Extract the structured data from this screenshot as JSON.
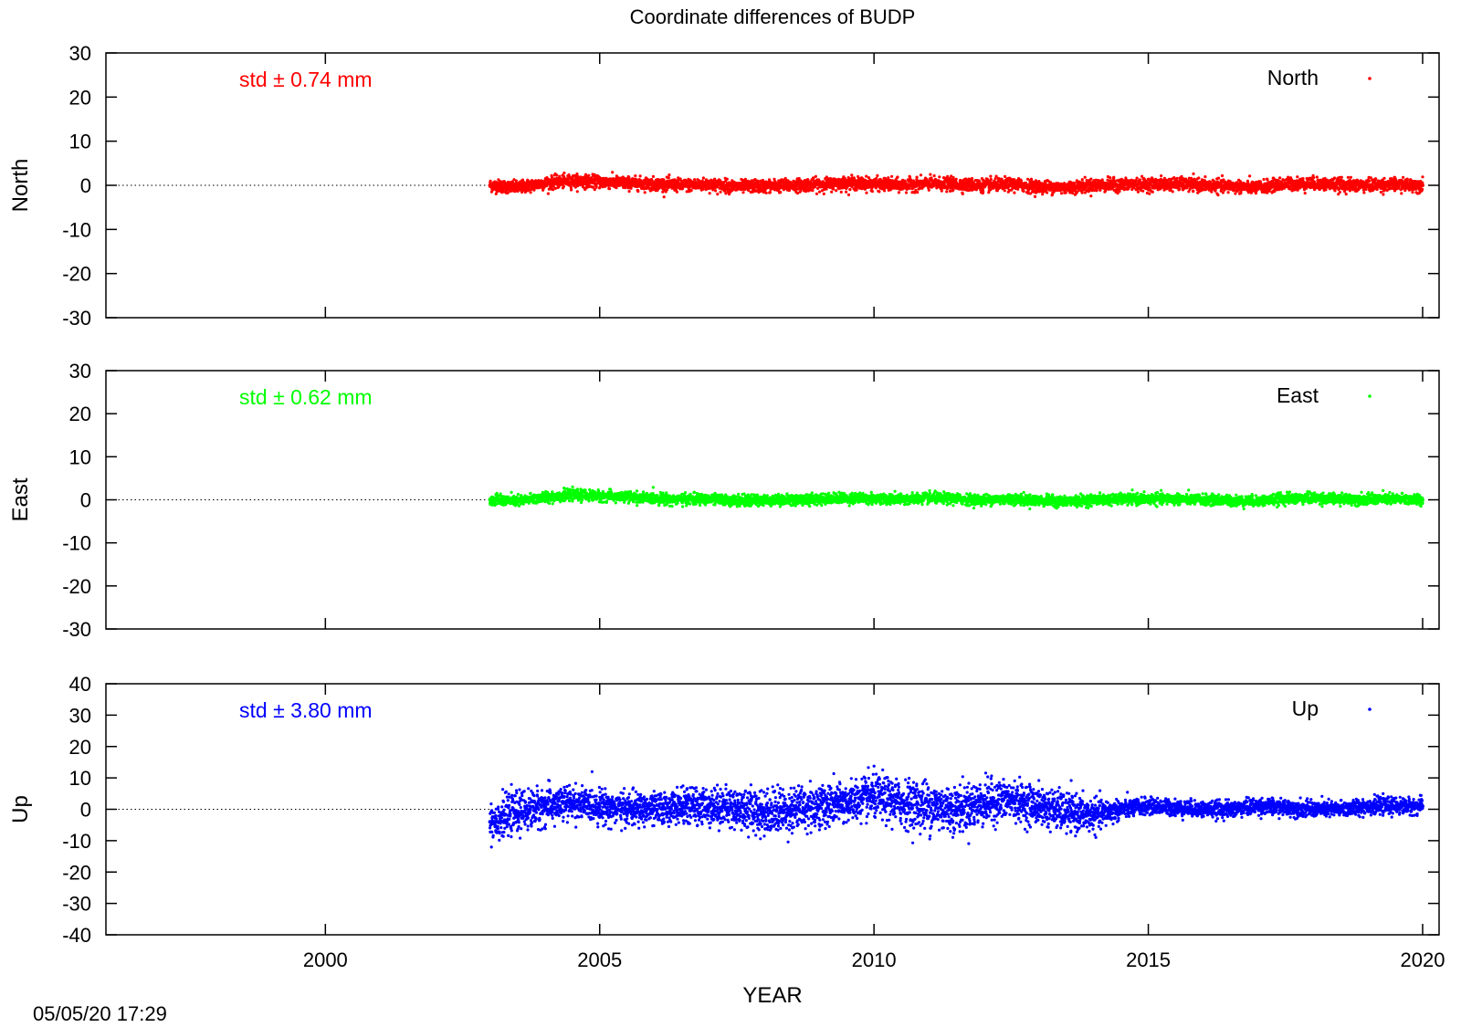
{
  "chart_data": {
    "type": "scatter",
    "title": "Coordinate differences of BUDP",
    "xlabel": "YEAR",
    "x_ticks": [
      2000,
      2005,
      2010,
      2015,
      2020
    ],
    "xlim": [
      1996,
      2020.3
    ],
    "timestamp": "05/05/20 17:29",
    "panels": [
      {
        "id": "north",
        "ylabel": "North",
        "ylim": [
          -30,
          30
        ],
        "y_ticks": [
          -30,
          -20,
          -10,
          0,
          10,
          20,
          30
        ],
        "legend": "North",
        "std_label": "std ± 0.74 mm",
        "color": "#ff0000",
        "series": {
          "x": [
            2003.0,
            2003.5,
            2004.0,
            2004.5,
            2005.0,
            2005.5,
            2006.0,
            2006.5,
            2007.0,
            2007.5,
            2008.0,
            2008.5,
            2009.0,
            2009.5,
            2010.0,
            2010.5,
            2011.0,
            2011.5,
            2012.0,
            2012.5,
            2013.0,
            2013.5,
            2014.0,
            2014.5,
            2015.0,
            2015.5,
            2016.0,
            2016.5,
            2017.0,
            2017.5,
            2018.0,
            2018.5,
            2019.0,
            2019.5,
            2020.0
          ],
          "y": [
            0.0,
            -0.5,
            0.5,
            1.0,
            0.8,
            0.5,
            0.3,
            0.0,
            0.2,
            -0.3,
            -0.2,
            0.0,
            0.2,
            0.5,
            0.3,
            0.0,
            0.4,
            0.2,
            0.0,
            0.2,
            -0.3,
            -0.5,
            0.0,
            0.1,
            0.2,
            0.3,
            0.0,
            -0.2,
            -0.5,
            0.3,
            0.4,
            0.1,
            0.0,
            0.2,
            0.0
          ],
          "spread": 1.4
        }
      },
      {
        "id": "east",
        "ylabel": "East",
        "ylim": [
          -30,
          30
        ],
        "y_ticks": [
          -30,
          -20,
          -10,
          0,
          10,
          20,
          30
        ],
        "legend": "East",
        "std_label": "std ± 0.62 mm",
        "color": "#00ff00",
        "series": {
          "x": [
            2003.0,
            2003.5,
            2004.0,
            2004.5,
            2005.0,
            2005.5,
            2006.0,
            2006.5,
            2007.0,
            2007.5,
            2008.0,
            2008.5,
            2009.0,
            2009.5,
            2010.0,
            2010.5,
            2011.0,
            2011.5,
            2012.0,
            2012.5,
            2013.0,
            2013.5,
            2014.0,
            2014.5,
            2015.0,
            2015.5,
            2016.0,
            2016.5,
            2017.0,
            2017.5,
            2018.0,
            2018.5,
            2019.0,
            2019.5,
            2020.0
          ],
          "y": [
            0.0,
            -0.3,
            0.6,
            1.1,
            0.9,
            0.6,
            0.3,
            0.1,
            0.2,
            -0.2,
            -0.1,
            0.0,
            0.2,
            0.4,
            0.3,
            0.1,
            0.4,
            0.2,
            0.0,
            0.2,
            -0.2,
            -0.4,
            0.0,
            0.1,
            0.2,
            0.2,
            0.0,
            -0.2,
            -0.3,
            0.3,
            0.4,
            0.2,
            0.1,
            0.2,
            0.0
          ],
          "spread": 1.2
        }
      },
      {
        "id": "up",
        "ylabel": "Up",
        "ylim": [
          -40,
          40
        ],
        "y_ticks": [
          -40,
          -30,
          -20,
          -10,
          0,
          10,
          20,
          30,
          40
        ],
        "legend": "Up",
        "std_label": "std ± 3.80 mm",
        "color": "#0000ff",
        "series": {
          "x": [
            2003.0,
            2003.5,
            2004.0,
            2004.5,
            2005.0,
            2005.5,
            2006.0,
            2006.5,
            2007.0,
            2007.5,
            2008.0,
            2008.5,
            2009.0,
            2009.5,
            2010.0,
            2010.5,
            2011.0,
            2011.5,
            2012.0,
            2012.5,
            2013.0,
            2013.5,
            2014.0,
            2014.5,
            2015.0,
            2015.5,
            2016.0,
            2016.5,
            2017.0,
            2017.5,
            2018.0,
            2018.5,
            2019.0,
            2019.5,
            2020.0
          ],
          "y": [
            -4.0,
            -1.0,
            1.0,
            2.0,
            1.0,
            0.0,
            0.0,
            1.0,
            1.0,
            0.5,
            -1.0,
            0.0,
            1.0,
            2.0,
            4.0,
            2.0,
            1.0,
            0.0,
            2.0,
            3.0,
            1.0,
            -1.0,
            -2.0,
            0.0,
            1.0,
            0.5,
            0.0,
            0.0,
            1.0,
            0.5,
            0.0,
            0.0,
            1.0,
            1.0,
            1.0
          ],
          "spread": [
            6,
            6,
            6,
            5,
            5,
            5,
            5,
            5,
            6,
            6,
            7,
            7,
            7,
            6,
            7,
            7,
            8,
            7,
            7,
            6,
            6,
            6,
            5,
            3,
            2.5,
            2.5,
            2.5,
            2.5,
            2.5,
            2.5,
            2.5,
            2.5,
            2.5,
            2.5,
            2.5
          ]
        }
      }
    ]
  }
}
